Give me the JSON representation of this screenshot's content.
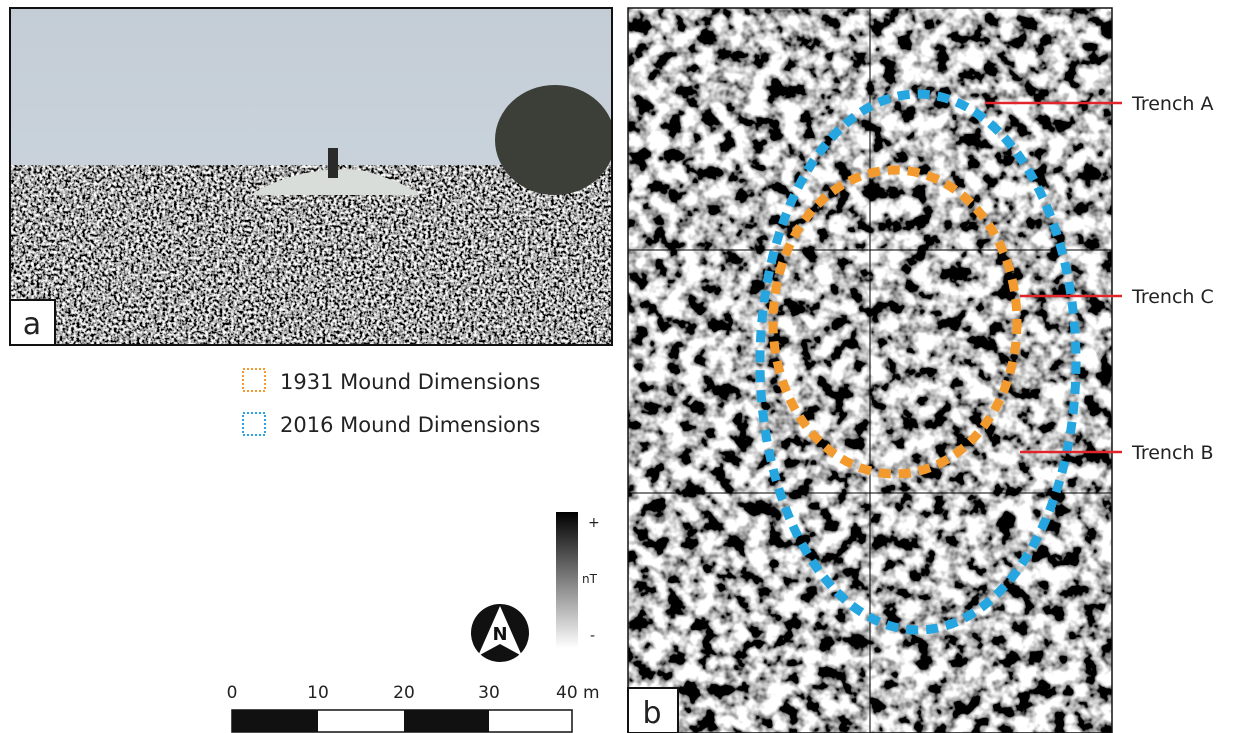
{
  "panel_a": {
    "label": "a"
  },
  "legend": {
    "items": [
      "1931 Mound Dimensions",
      "2016 Mound Dimensions"
    ]
  },
  "colorbar": {
    "top": "+",
    "unit": "nT",
    "bottom": "-"
  },
  "north_arrow": {
    "label": "N"
  },
  "scale_bar": {
    "labels": [
      "0",
      "10",
      "20",
      "30",
      "40 m"
    ]
  },
  "panel_b": {
    "label": "b"
  },
  "trenches": [
    "Trench A",
    "Trench C",
    "Trench B"
  ]
}
